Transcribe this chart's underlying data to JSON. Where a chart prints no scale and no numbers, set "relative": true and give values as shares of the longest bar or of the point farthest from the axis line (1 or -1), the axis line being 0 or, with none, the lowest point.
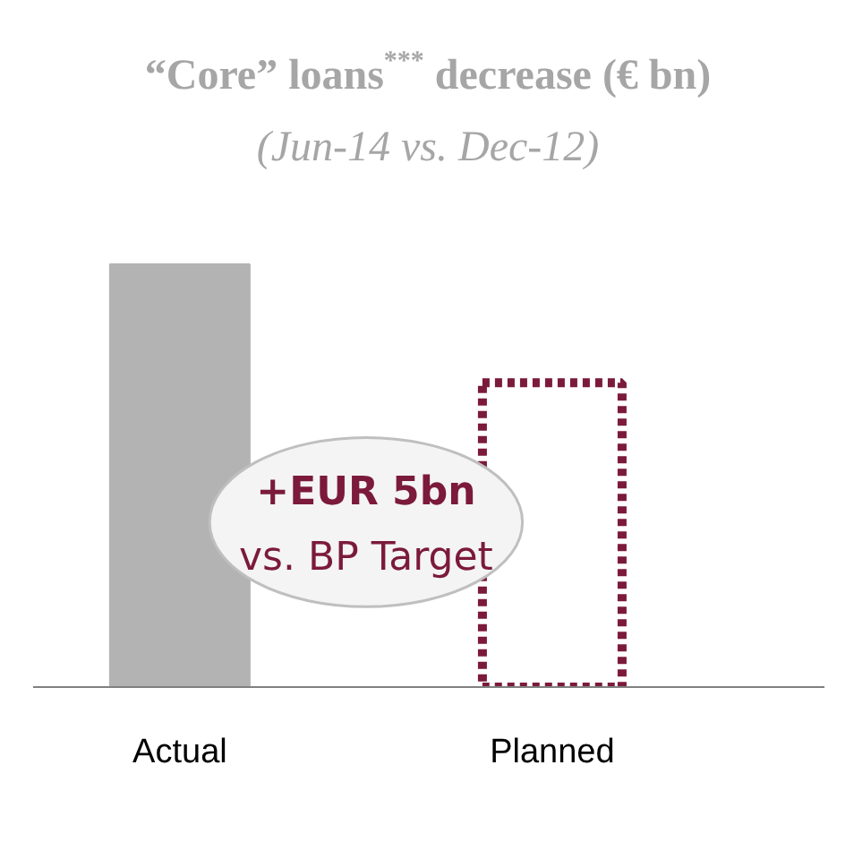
{
  "chart_data": {
    "type": "bar",
    "title": "“Core” loans$^{***}$ decrease (€ bn)",
    "subtitle": "(Jun-14 vs. Dec-12)",
    "categories": [
      "Actual",
      "Planned"
    ],
    "relative": true,
    "series": [
      {
        "color": "#b3b3b3",
        "values": [
          1,
          null
        ]
      },
      {
        "color": "#7b1a3a",
        "values": [
          null,
          0.72
        ],
        "line_style": "dotted"
      }
    ],
    "annotations": [
      "+EUR 5bn",
      "vs. BP Target"
    ],
    "grid": false
  }
}
